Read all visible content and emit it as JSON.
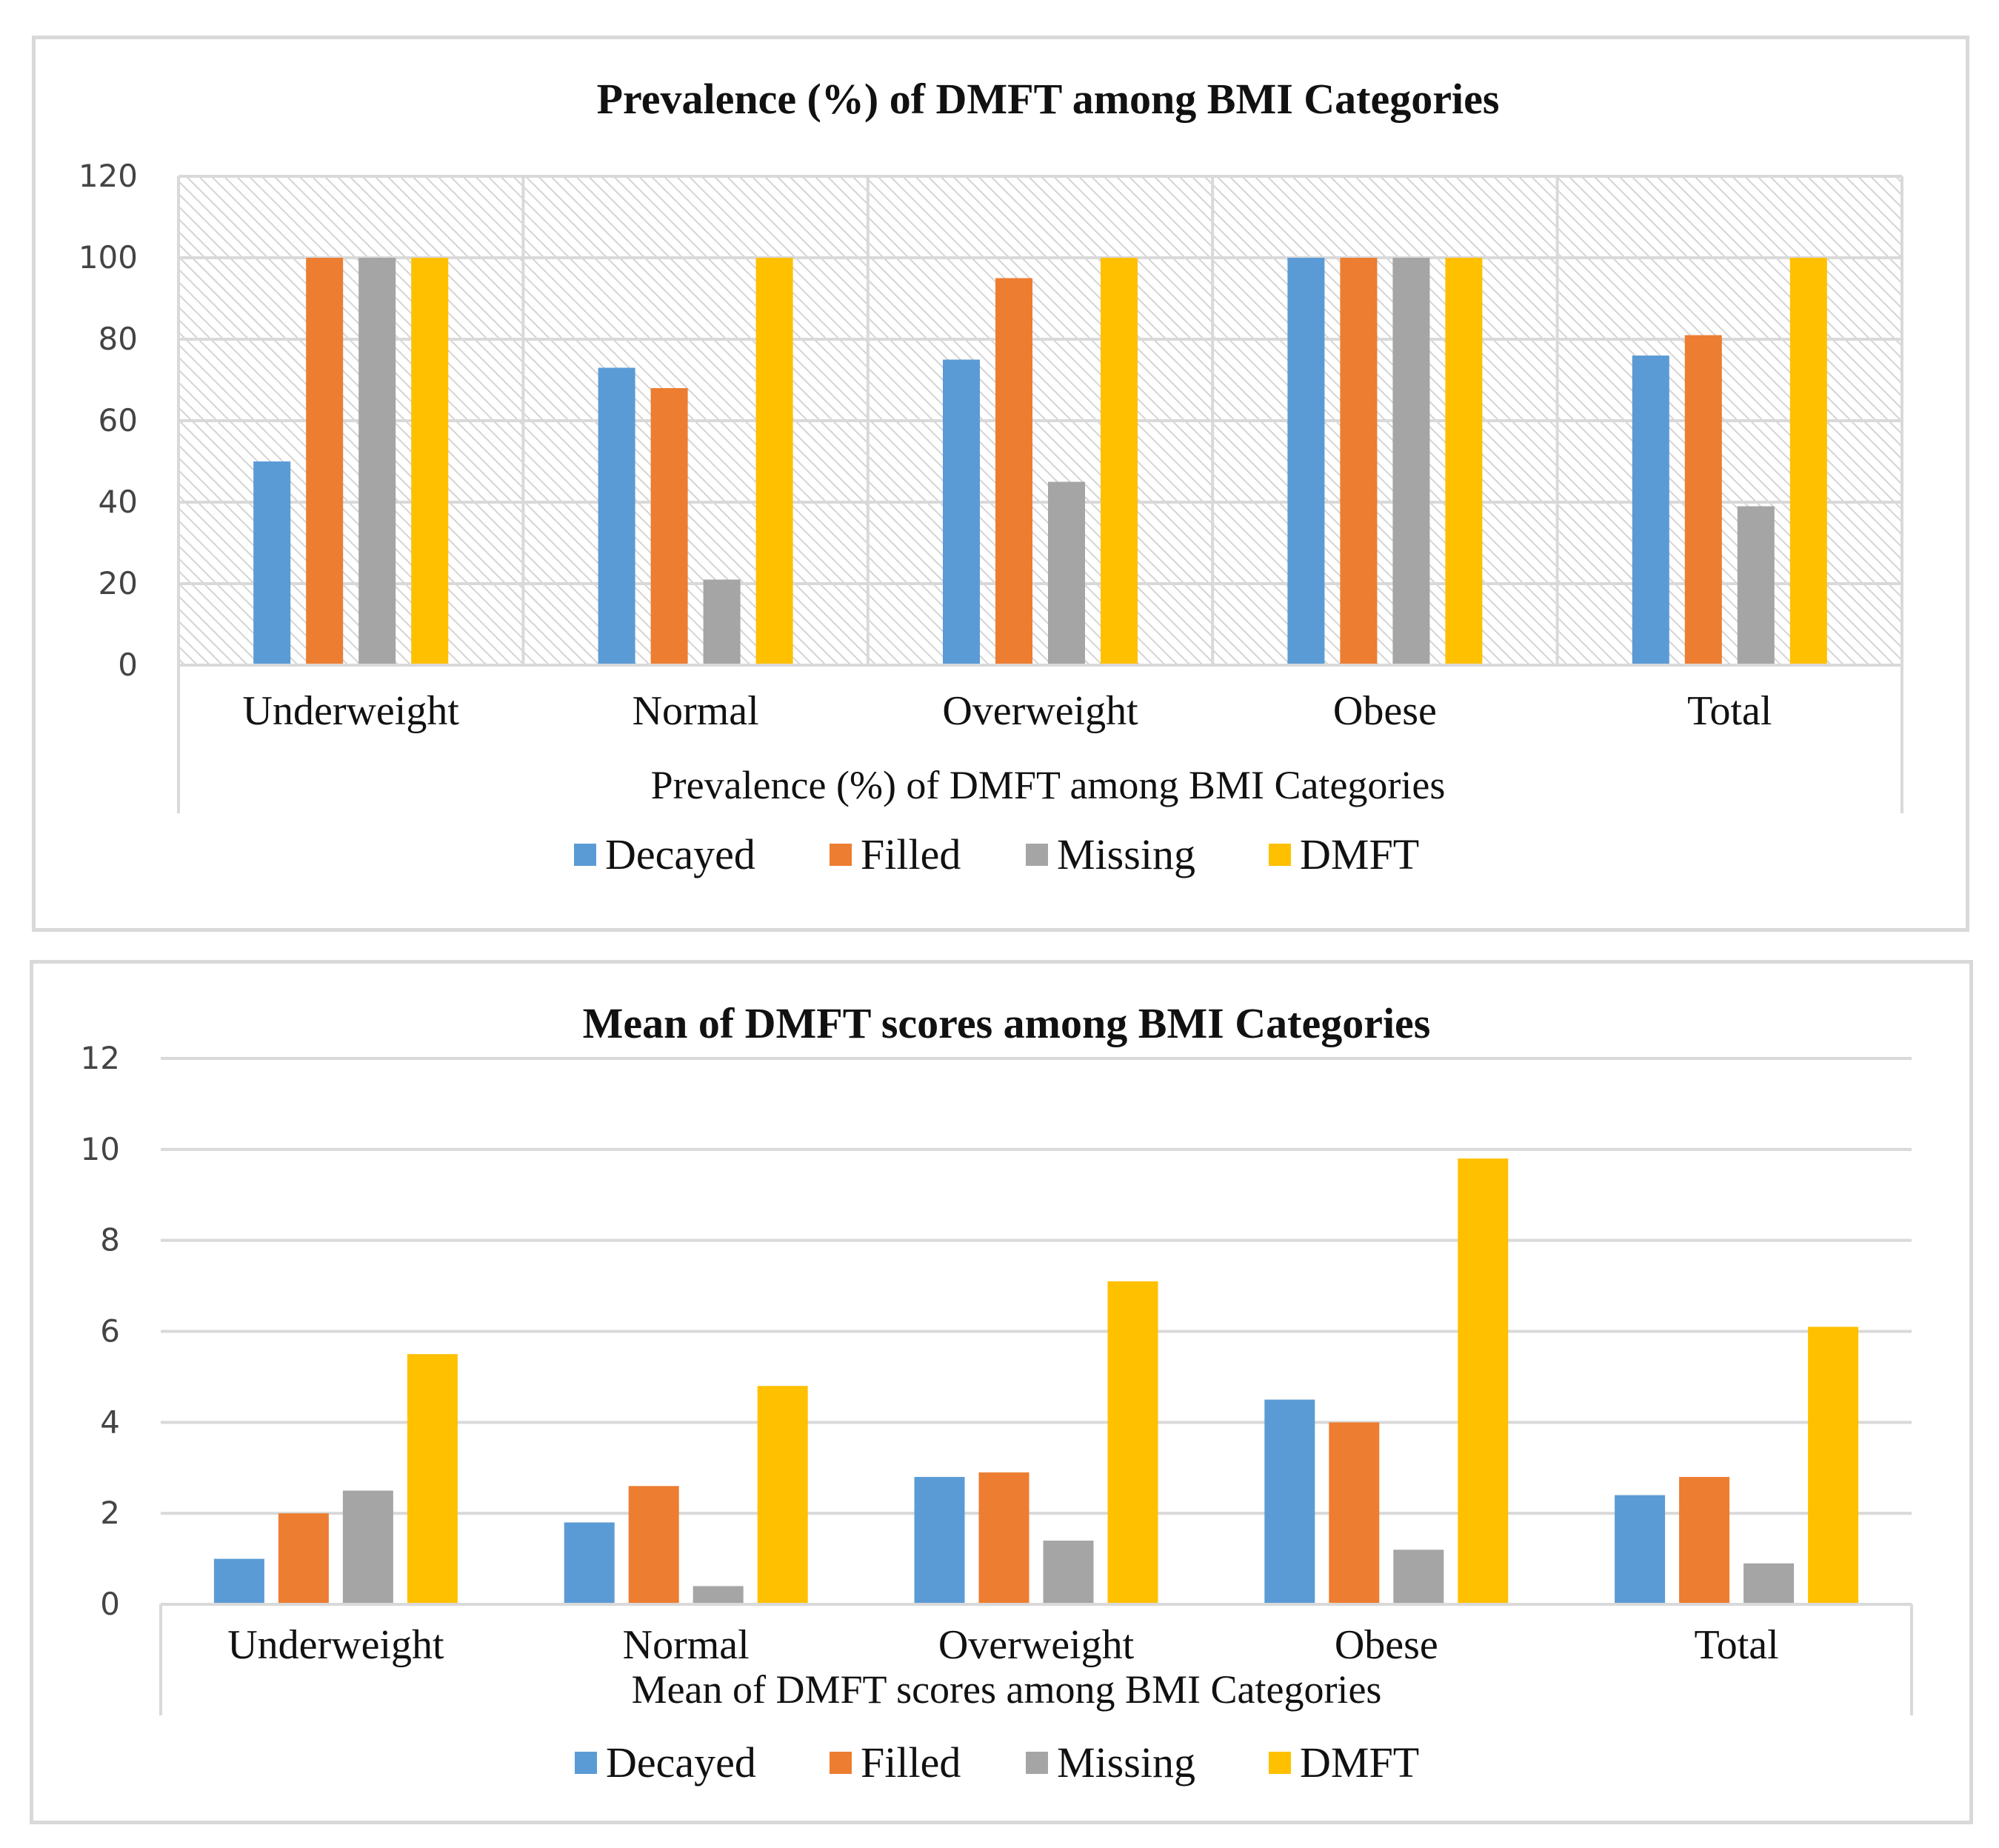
{
  "chart_data": [
    {
      "type": "bar",
      "title": "Prevalence (%) of DMFT among BMI Categories",
      "xlabel": "Prevalence (%) of DMFT among BMI Categories",
      "ylabel": "",
      "categories": [
        "Underweight",
        "Normal",
        "Overweight",
        "Obese",
        "Total"
      ],
      "series": [
        {
          "name": "Decayed",
          "color": "#5b9bd5",
          "values": [
            50,
            73,
            75,
            100,
            76
          ]
        },
        {
          "name": "Filled",
          "color": "#ed7d31",
          "values": [
            100,
            68,
            95,
            100,
            81
          ]
        },
        {
          "name": "Missing",
          "color": "#a5a5a5",
          "values": [
            100,
            21,
            45,
            100,
            39
          ]
        },
        {
          "name": "DMFT",
          "color": "#ffc000",
          "values": [
            100,
            100,
            100,
            100,
            100
          ]
        }
      ],
      "ylim": [
        0,
        120
      ],
      "yticks": [
        0,
        20,
        40,
        60,
        80,
        100,
        120
      ],
      "grid": true,
      "plot_area_pattern": "diagonal-hatch",
      "legend": "bottom"
    },
    {
      "type": "bar",
      "title": "Mean of DMFT scores among BMI Categories",
      "xlabel": "Mean of DMFT scores among BMI Categories",
      "ylabel": "",
      "categories": [
        "Underweight",
        "Normal",
        "Overweight",
        "Obese",
        "Total"
      ],
      "series": [
        {
          "name": "Decayed",
          "color": "#5b9bd5",
          "values": [
            1.0,
            1.8,
            2.8,
            4.5,
            2.4
          ]
        },
        {
          "name": "Filled",
          "color": "#ed7d31",
          "values": [
            2.0,
            2.6,
            2.9,
            4.0,
            2.8
          ]
        },
        {
          "name": "Missing",
          "color": "#a5a5a5",
          "values": [
            2.5,
            0.4,
            1.4,
            1.2,
            0.9
          ]
        },
        {
          "name": "DMFT",
          "color": "#ffc000",
          "values": [
            5.5,
            4.8,
            7.1,
            9.8,
            6.1
          ]
        }
      ],
      "ylim": [
        0,
        12
      ],
      "yticks": [
        0,
        2,
        4,
        6,
        8,
        10,
        12
      ],
      "grid": true,
      "plot_area_pattern": "none",
      "legend": "bottom"
    }
  ]
}
